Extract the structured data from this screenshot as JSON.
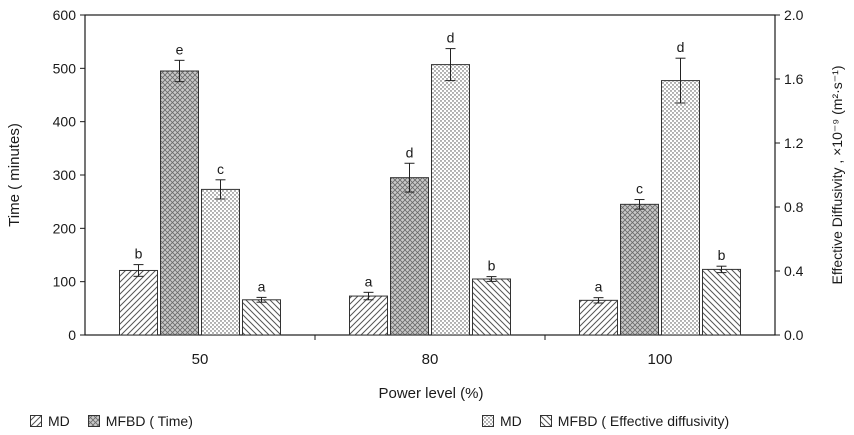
{
  "chart_data": {
    "type": "bar",
    "categories": [
      "50",
      "80",
      "100"
    ],
    "xlabel": "Power level  (%)",
    "ylabel": "Time  ( minutes)",
    "y2label": "Effective Diffusivity , ×10⁻⁹ (m²·s⁻¹)",
    "ylim": [
      0,
      600
    ],
    "y2lim": [
      0,
      2.0
    ],
    "yticks": [
      "0",
      "100",
      "200",
      "300",
      "400",
      "500",
      "600"
    ],
    "y2ticks": [
      "0.0",
      "0.4",
      "0.8",
      "1.2",
      "1.6",
      "2.0"
    ],
    "series": [
      {
        "name": "MD",
        "axis": "left",
        "pattern": "diag-fwd",
        "values": [
          121,
          73,
          65
        ],
        "errors": [
          11,
          7,
          5
        ],
        "letters": [
          "b",
          "a",
          "a"
        ]
      },
      {
        "name": "MFBD ( Time)",
        "axis": "left",
        "pattern": "crosshatch",
        "values": [
          495,
          295,
          245
        ],
        "errors": [
          20,
          27,
          9
        ],
        "letters": [
          "e",
          "d",
          "c"
        ]
      },
      {
        "name": "MD",
        "axis": "right",
        "pattern": "dots",
        "values": [
          0.91,
          1.69,
          1.59
        ],
        "errors": [
          0.06,
          0.1,
          0.14
        ],
        "letters": [
          "c",
          "d",
          "d"
        ]
      },
      {
        "name": "MFBD ( Effective diffusivity)",
        "axis": "right",
        "pattern": "diag-back",
        "values": [
          0.22,
          0.35,
          0.41
        ],
        "errors": [
          0.015,
          0.015,
          0.02
        ],
        "letters": [
          "a",
          "b",
          "b"
        ]
      }
    ],
    "grid": false,
    "legend_position": "bottom"
  },
  "colors": {
    "axis": "#1a1a1a",
    "bar_stroke": "#333333",
    "pattern_ink": "#555555",
    "crosshatch_bg": "#c9c9c9"
  }
}
